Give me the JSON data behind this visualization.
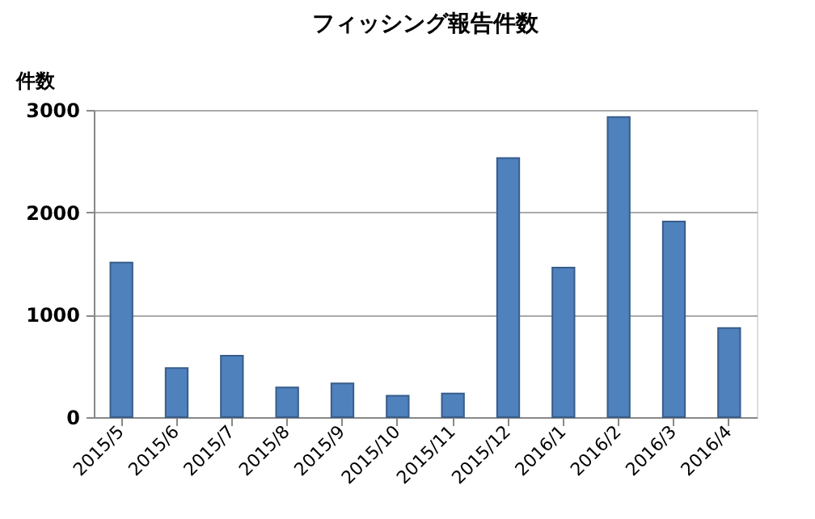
{
  "chart_data": {
    "type": "bar",
    "title": "フィッシング報告件数",
    "ylabel": "件数",
    "categories": [
      "2015/5",
      "2015/6",
      "2015/7",
      "2015/8",
      "2015/9",
      "2015/10",
      "2015/11",
      "2015/12",
      "2016/1",
      "2016/2",
      "2016/3",
      "2016/4"
    ],
    "values": [
      1510,
      480,
      600,
      290,
      330,
      210,
      230,
      2530,
      1460,
      2930,
      1910,
      870
    ],
    "color": "#4f81bd",
    "ylim": [
      0,
      3000
    ],
    "yticks": [
      0,
      1000,
      2000,
      3000
    ],
    "grid": "y"
  }
}
